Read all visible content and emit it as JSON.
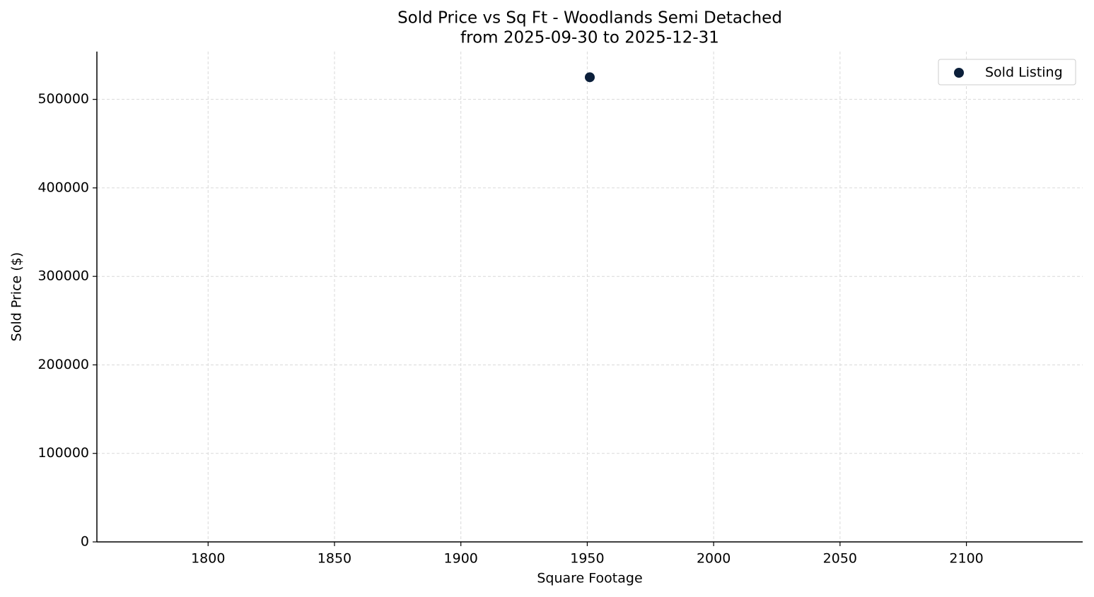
{
  "chart_data": {
    "type": "scatter",
    "title": "Sold Price vs Sq Ft - Woodlands Semi Detached",
    "subtitle": "from 2025-09-30 to 2025-12-31",
    "x_label": "Square Footage",
    "y_label": "Sold Price ($)",
    "series": [
      {
        "name": "Sold Listing",
        "color": "#0b1f3a",
        "x": [
          1951
        ],
        "values": [
          525000
        ]
      }
    ],
    "xlim": [
      1756,
      2146
    ],
    "xticks": [
      1800,
      1850,
      1900,
      1950,
      2000,
      2050,
      2100
    ],
    "ylim": [
      0,
      554000
    ],
    "yticks": [
      0,
      100000,
      200000,
      300000,
      400000,
      500000
    ],
    "grid": true,
    "legend": "upper right"
  }
}
